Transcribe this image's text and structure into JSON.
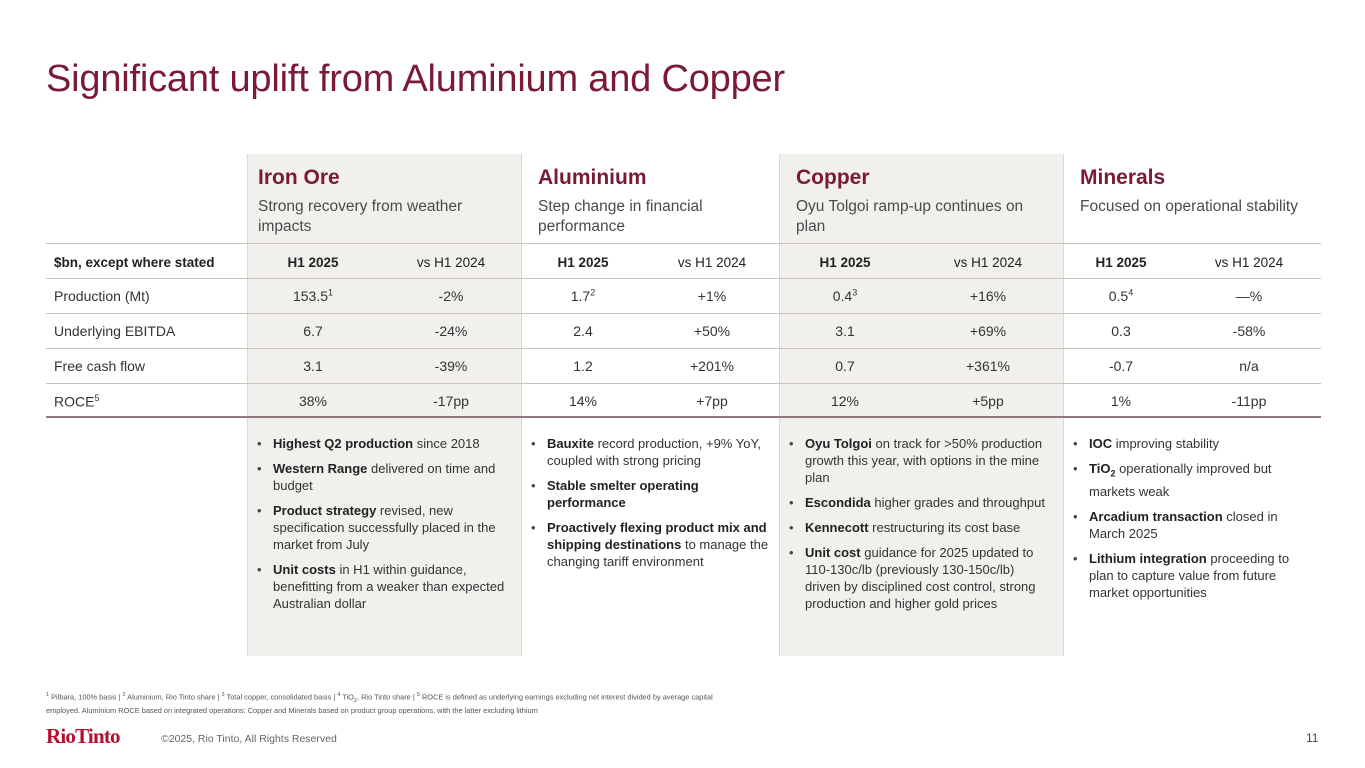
{
  "title": "Significant uplift from Aluminium and Copper",
  "segments": [
    {
      "name": "Iron Ore",
      "subtitle": "Strong recovery from weather impacts"
    },
    {
      "name": "Aluminium",
      "subtitle": "Step change in financial performance"
    },
    {
      "name": "Copper",
      "subtitle": "Oyu Tolgoi ramp-up continues on plan"
    },
    {
      "name": "Minerals",
      "subtitle": "Focused on operational stability"
    }
  ],
  "table": {
    "unit_label": "$bn, except where stated",
    "col_current": "H1 2025",
    "col_compare": "vs H1 2024",
    "rows": [
      {
        "label": "Production (Mt)",
        "values": [
          {
            "v": "153.5",
            "sup": "1",
            "c": "-2%"
          },
          {
            "v": "1.7",
            "sup": "2",
            "c": "+1%"
          },
          {
            "v": "0.4",
            "sup": "3",
            "c": "+16%"
          },
          {
            "v": "0.5",
            "sup": "4",
            "c": "—%"
          }
        ]
      },
      {
        "label": "Underlying EBITDA",
        "values": [
          {
            "v": "6.7",
            "c": "-24%"
          },
          {
            "v": "2.4",
            "c": "+50%"
          },
          {
            "v": "3.1",
            "c": "+69%"
          },
          {
            "v": "0.3",
            "c": "-58%"
          }
        ]
      },
      {
        "label": "Free cash flow",
        "values": [
          {
            "v": "3.1",
            "c": "-39%"
          },
          {
            "v": "1.2",
            "c": "+201%"
          },
          {
            "v": "0.7",
            "c": "+361%"
          },
          {
            "v": "-0.7",
            "c": "n/a"
          }
        ]
      },
      {
        "label": "ROCE",
        "label_sup": "5",
        "values": [
          {
            "v": "38%",
            "c": "-17pp"
          },
          {
            "v": "14%",
            "c": "+7pp"
          },
          {
            "v": "12%",
            "c": "+5pp"
          },
          {
            "v": "1%",
            "c": "-11pp"
          }
        ]
      }
    ]
  },
  "bullets": [
    [
      {
        "b": "Highest Q2 production",
        "t": " since 2018"
      },
      {
        "b": "Western Range",
        "t": " delivered on time and budget"
      },
      {
        "b": "Product strategy",
        "t": " revised, new specification successfully placed in the market from July"
      },
      {
        "b": "Unit costs",
        "t": " in H1 within guidance, benefitting from a weaker than expected Australian dollar"
      }
    ],
    [
      {
        "b": "Bauxite",
        "t": " record production, +9% YoY, coupled with strong pricing"
      },
      {
        "b": "Stable smelter operating performance",
        "t": ""
      },
      {
        "b": "Proactively flexing product mix and shipping destinations",
        "t": " to manage the changing tariff environment"
      }
    ],
    [
      {
        "b": "Oyu Tolgoi",
        "t": " on track for >50% production growth this year, with options in the mine plan"
      },
      {
        "b": "Escondida",
        "t": " higher grades and throughput"
      },
      {
        "b": "Kennecott",
        "t": " restructuring its cost base"
      },
      {
        "b": "Unit cost",
        "t": " guidance for 2025 updated to 110-130c/lb (previously 130-150c/lb) driven by disciplined cost control, strong production and higher gold prices"
      }
    ],
    [
      {
        "b": "IOC",
        "t": " improving stability"
      },
      {
        "b": "TiO",
        "bsub": "2",
        "t": " operationally improved but markets weak"
      },
      {
        "b": "Arcadium transaction",
        "t": " closed in March 2025"
      },
      {
        "b": "Lithium integration",
        "t": " proceeding to plan to capture value from future market opportunities"
      }
    ]
  ],
  "footnotes": [
    {
      "sup": "1",
      "t": " Pilbara, 100% basis | "
    },
    {
      "sup": "2",
      "t": " Aluminium, Rio Tinto share | "
    },
    {
      "sup": "3",
      "t": " Total copper, consolidated basis | "
    },
    {
      "sup": "4",
      "t": " TiO",
      "sub": "2",
      "t2": ", Rio Tinto share | "
    },
    {
      "sup": "5",
      "t": " ROCE is defined as underlying earnings excluding net interest divided by average capital employed. Aluminium ROCE based on integrated operations; Copper and Minerals based on product group operations, with the latter excluding lithium"
    }
  ],
  "footer": {
    "logo": "RioTinto",
    "copyright": "©2025, Rio Tinto, All Rights Reserved",
    "page": "11"
  },
  "colors": {
    "accent": "#7a1a35",
    "logo": "#b3102e",
    "shade": "#f2f0ed"
  }
}
